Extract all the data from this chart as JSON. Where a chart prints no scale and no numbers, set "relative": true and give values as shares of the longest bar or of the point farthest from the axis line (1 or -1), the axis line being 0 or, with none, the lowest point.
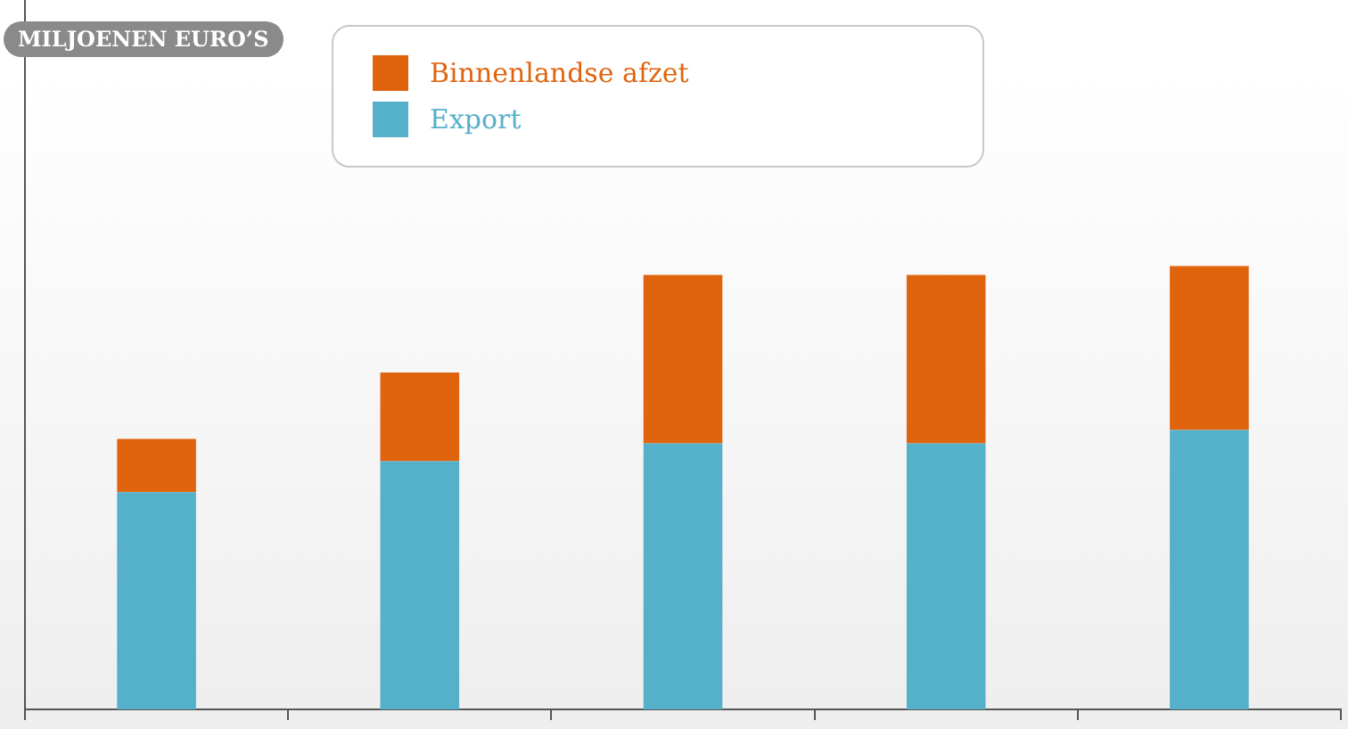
{
  "chart_data": {
    "type": "bar",
    "annotations": [
      "MILJOENEN EURO’S"
    ],
    "relative": true,
    "stacked": true,
    "categories": [
      null,
      null,
      null,
      null,
      null
    ],
    "series": [
      {
        "name": "Export",
        "color": "#55b0ca",
        "values": [
          0.49,
          0.56,
          0.6,
          0.6,
          0.63
        ]
      },
      {
        "name": "Binnenlandse afzet",
        "color": "#e0640e",
        "values": [
          0.12,
          0.2,
          0.38,
          0.38,
          0.37
        ]
      }
    ],
    "legend": "top"
  }
}
